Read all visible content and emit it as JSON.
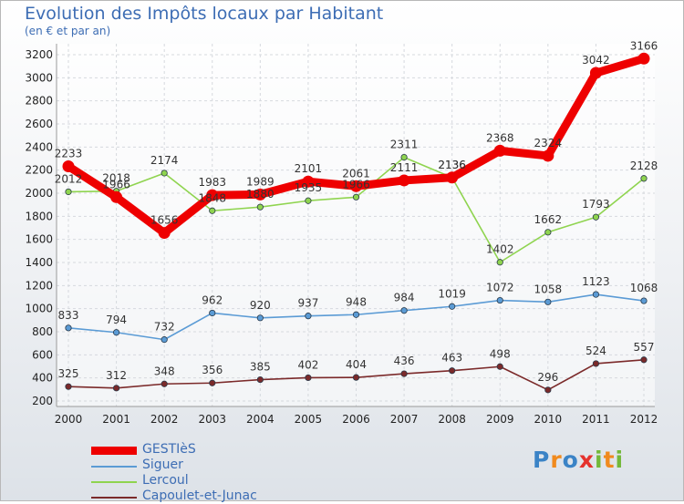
{
  "title": "Evolution des Impôts locaux par Habitant",
  "subtitle": "(en € et par an)",
  "logo": {
    "letters": [
      "P",
      "r",
      "o",
      "x",
      "i",
      "t",
      "i"
    ],
    "colors": [
      "#3b83c6",
      "#f08a1e",
      "#3b83c6",
      "#e5322d",
      "#73b83a",
      "#f08a1e",
      "#73b83a"
    ]
  },
  "chart_data": {
    "type": "line",
    "x": [
      "2000",
      "2001",
      "2002",
      "2003",
      "2004",
      "2005",
      "2006",
      "2007",
      "2008",
      "2009",
      "2010",
      "2011",
      "2012"
    ],
    "ylim": [
      200,
      3200
    ],
    "yticks": [
      "200",
      "400",
      "600",
      "800",
      "1000",
      "1200",
      "1400",
      "1600",
      "1800",
      "2000",
      "2200",
      "2400",
      "2600",
      "2800",
      "3000",
      "3200"
    ],
    "grid": true,
    "legend_position": "bottom-left",
    "series": [
      {
        "name": "GESTIèS",
        "color": "#ee0000",
        "values": [
          2233,
          1966,
          1656,
          1983,
          1989,
          2101,
          2061,
          2111,
          2136,
          2368,
          2324,
          3042,
          3166
        ],
        "labels": [
          "2233",
          "1966",
          "1656",
          "1983",
          "1989",
          "2101",
          "2061",
          "2111",
          "2136",
          "2368",
          "2324",
          "3042",
          "3166"
        ]
      },
      {
        "name": "Siguer",
        "color": "#5b9bd5",
        "values": [
          833,
          794,
          732,
          962,
          920,
          937,
          948,
          984,
          1019,
          1072,
          1058,
          1123,
          1068
        ],
        "labels": [
          "833",
          "794",
          "732",
          "962",
          "920",
          "937",
          "948",
          "984",
          "1019",
          "1072",
          "1058",
          "1123",
          "1068"
        ]
      },
      {
        "name": "Lercoul",
        "color": "#8fd44f",
        "values": [
          2012,
          2018,
          2174,
          1848,
          1880,
          1935,
          1966,
          2311,
          2136,
          1402,
          1662,
          1793,
          2128
        ],
        "labels": [
          "2012",
          "2018",
          "2174",
          "1848",
          "1880",
          "1935",
          "1966",
          "2311",
          "2136",
          "1402",
          "1662",
          "1793",
          "2128"
        ]
      },
      {
        "name": "Capoulet-et-Junac",
        "color": "#7b2a2a",
        "values": [
          325,
          312,
          348,
          356,
          385,
          402,
          404,
          436,
          463,
          498,
          296,
          524,
          557
        ],
        "labels": [
          "325",
          "312",
          "348",
          "356",
          "385",
          "402",
          "404",
          "436",
          "463",
          "498",
          "296",
          "524",
          "557"
        ]
      }
    ]
  }
}
